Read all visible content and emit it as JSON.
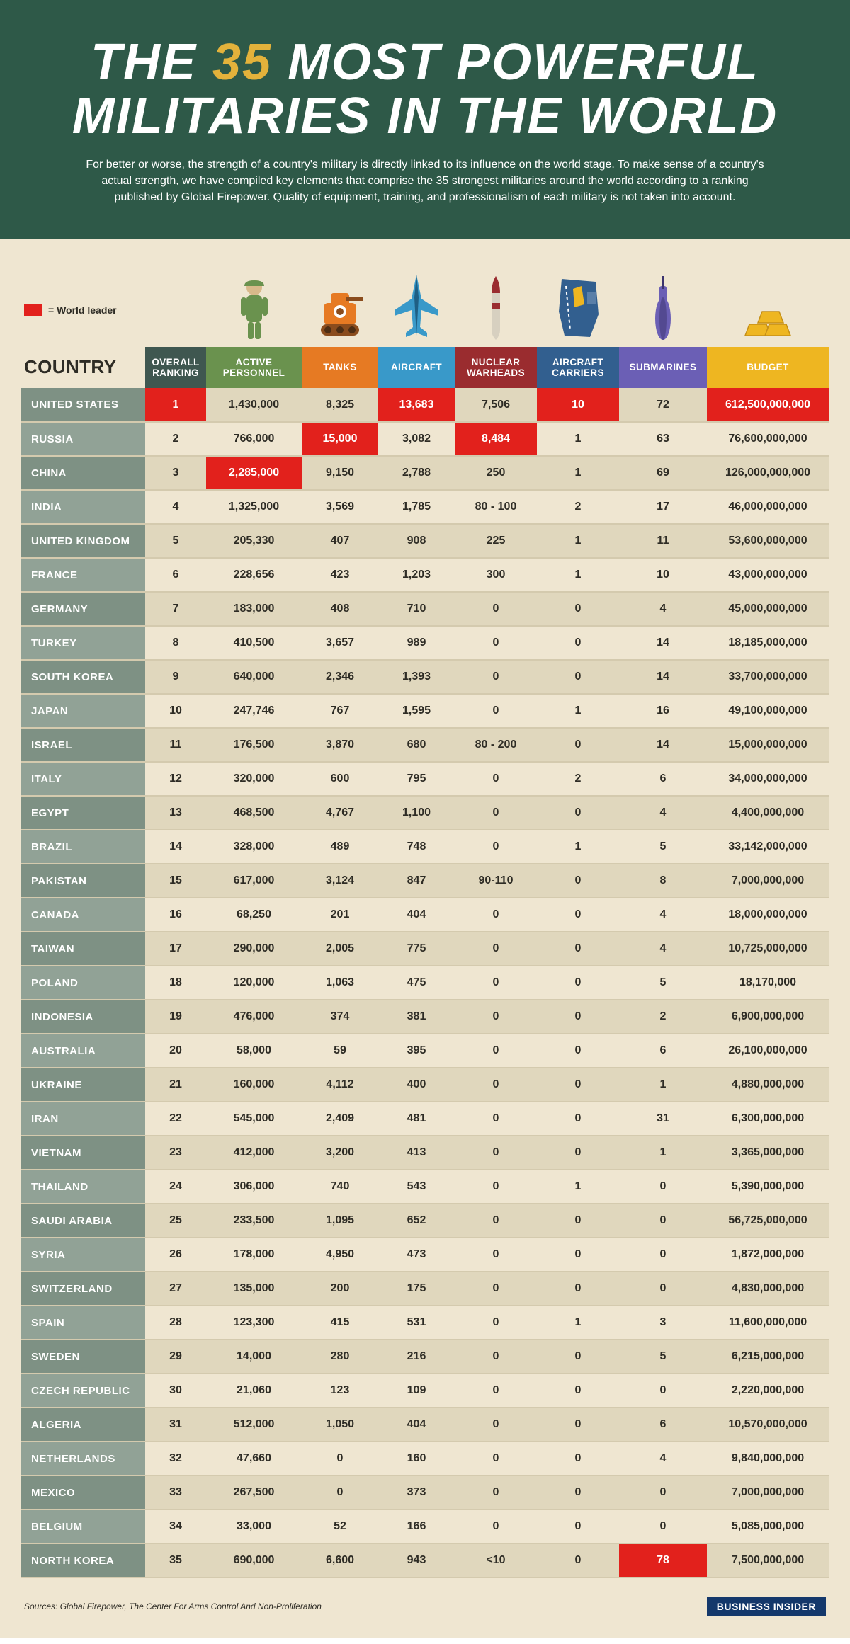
{
  "type": "table-infographic",
  "background_color": "#efe6d1",
  "header": {
    "background_color": "#2e5948",
    "title_line1_pre": "THE ",
    "title_accent": "35",
    "title_line1_post": " MOST POWERFUL",
    "title_line2": "MILITARIES IN THE WORLD",
    "title_color": "#ffffff",
    "accent_color": "#e3b23b",
    "title_fontsize": 72,
    "subtitle": "For better or worse, the strength of a country's military is directly linked to its influence on the world stage. To make sense of a country's actual strength, we have compiled key elements that comprise the 35 strongest militaries around the world according to a ranking published by Global Firepower. Quality of equipment, training, and professionalism of each military is not taken into account.",
    "subtitle_fontsize": 16
  },
  "legend": {
    "swatch_color": "#e2211c",
    "label": "= World leader"
  },
  "columns": [
    {
      "key": "country",
      "label": "COUNTRY",
      "header_bg": "transparent",
      "icon": null
    },
    {
      "key": "rank",
      "label": "OVERALL RANKING",
      "header_bg": "#3f5750",
      "icon": null
    },
    {
      "key": "personnel",
      "label": "ACTIVE PERSONNEL",
      "header_bg": "#6a924e",
      "icon": "soldier"
    },
    {
      "key": "tanks",
      "label": "TANKS",
      "header_bg": "#e67a23",
      "icon": "tank"
    },
    {
      "key": "aircraft",
      "label": "AIRCRAFT",
      "header_bg": "#3999c9",
      "icon": "jet"
    },
    {
      "key": "warheads",
      "label": "NUCLEAR WARHEADS",
      "header_bg": "#9a2c2f",
      "icon": "missile"
    },
    {
      "key": "carriers",
      "label": "AIRCRAFT CARRIERS",
      "header_bg": "#325f8f",
      "icon": "carrier"
    },
    {
      "key": "subs",
      "label": "SUBMARINES",
      "header_bg": "#6b5fb5",
      "icon": "submarine"
    },
    {
      "key": "budget",
      "label": "BUDGET",
      "header_bg": "#eeb621",
      "icon": "gold"
    }
  ],
  "row_colors": {
    "country_odd": "#7e9184",
    "country_even": "#91a296",
    "cell_odd": "#e0d7bd",
    "cell_even": "#efe6d1",
    "leader": "#e2211c",
    "border": "#d4caae",
    "text": "#2e2c25"
  },
  "rows": [
    {
      "country": "UNITED STATES",
      "rank": "1",
      "personnel": "1,430,000",
      "tanks": "8,325",
      "aircraft": "13,683",
      "warheads": "7,506",
      "carriers": "10",
      "subs": "72",
      "budget": "612,500,000,000",
      "leaders": [
        "rank",
        "aircraft",
        "carriers",
        "budget"
      ]
    },
    {
      "country": "RUSSIA",
      "rank": "2",
      "personnel": "766,000",
      "tanks": "15,000",
      "aircraft": "3,082",
      "warheads": "8,484",
      "carriers": "1",
      "subs": "63",
      "budget": "76,600,000,000",
      "leaders": [
        "tanks",
        "warheads"
      ]
    },
    {
      "country": "CHINA",
      "rank": "3",
      "personnel": "2,285,000",
      "tanks": "9,150",
      "aircraft": "2,788",
      "warheads": "250",
      "carriers": "1",
      "subs": "69",
      "budget": "126,000,000,000",
      "leaders": [
        "personnel"
      ]
    },
    {
      "country": "INDIA",
      "rank": "4",
      "personnel": "1,325,000",
      "tanks": "3,569",
      "aircraft": "1,785",
      "warheads": "80 - 100",
      "carriers": "2",
      "subs": "17",
      "budget": "46,000,000,000",
      "leaders": []
    },
    {
      "country": "UNITED KINGDOM",
      "rank": "5",
      "personnel": "205,330",
      "tanks": "407",
      "aircraft": "908",
      "warheads": "225",
      "carriers": "1",
      "subs": "11",
      "budget": "53,600,000,000",
      "leaders": []
    },
    {
      "country": "FRANCE",
      "rank": "6",
      "personnel": "228,656",
      "tanks": "423",
      "aircraft": "1,203",
      "warheads": "300",
      "carriers": "1",
      "subs": "10",
      "budget": "43,000,000,000",
      "leaders": []
    },
    {
      "country": "GERMANY",
      "rank": "7",
      "personnel": "183,000",
      "tanks": "408",
      "aircraft": "710",
      "warheads": "0",
      "carriers": "0",
      "subs": "4",
      "budget": "45,000,000,000",
      "leaders": []
    },
    {
      "country": "TURKEY",
      "rank": "8",
      "personnel": "410,500",
      "tanks": "3,657",
      "aircraft": "989",
      "warheads": "0",
      "carriers": "0",
      "subs": "14",
      "budget": "18,185,000,000",
      "leaders": []
    },
    {
      "country": "SOUTH KOREA",
      "rank": "9",
      "personnel": "640,000",
      "tanks": "2,346",
      "aircraft": "1,393",
      "warheads": "0",
      "carriers": "0",
      "subs": "14",
      "budget": "33,700,000,000",
      "leaders": []
    },
    {
      "country": "JAPAN",
      "rank": "10",
      "personnel": "247,746",
      "tanks": "767",
      "aircraft": "1,595",
      "warheads": "0",
      "carriers": "1",
      "subs": "16",
      "budget": "49,100,000,000",
      "leaders": []
    },
    {
      "country": "ISRAEL",
      "rank": "11",
      "personnel": "176,500",
      "tanks": "3,870",
      "aircraft": "680",
      "warheads": "80 - 200",
      "carriers": "0",
      "subs": "14",
      "budget": "15,000,000,000",
      "leaders": []
    },
    {
      "country": "ITALY",
      "rank": "12",
      "personnel": "320,000",
      "tanks": "600",
      "aircraft": "795",
      "warheads": "0",
      "carriers": "2",
      "subs": "6",
      "budget": "34,000,000,000",
      "leaders": []
    },
    {
      "country": "EGYPT",
      "rank": "13",
      "personnel": "468,500",
      "tanks": "4,767",
      "aircraft": "1,100",
      "warheads": "0",
      "carriers": "0",
      "subs": "4",
      "budget": "4,400,000,000",
      "leaders": []
    },
    {
      "country": "BRAZIL",
      "rank": "14",
      "personnel": "328,000",
      "tanks": "489",
      "aircraft": "748",
      "warheads": "0",
      "carriers": "1",
      "subs": "5",
      "budget": "33,142,000,000",
      "leaders": []
    },
    {
      "country": "PAKISTAN",
      "rank": "15",
      "personnel": "617,000",
      "tanks": "3,124",
      "aircraft": "847",
      "warheads": "90-110",
      "carriers": "0",
      "subs": "8",
      "budget": "7,000,000,000",
      "leaders": []
    },
    {
      "country": "CANADA",
      "rank": "16",
      "personnel": "68,250",
      "tanks": "201",
      "aircraft": "404",
      "warheads": "0",
      "carriers": "0",
      "subs": "4",
      "budget": "18,000,000,000",
      "leaders": []
    },
    {
      "country": "TAIWAN",
      "rank": "17",
      "personnel": "290,000",
      "tanks": "2,005",
      "aircraft": "775",
      "warheads": "0",
      "carriers": "0",
      "subs": "4",
      "budget": "10,725,000,000",
      "leaders": []
    },
    {
      "country": "POLAND",
      "rank": "18",
      "personnel": "120,000",
      "tanks": "1,063",
      "aircraft": "475",
      "warheads": "0",
      "carriers": "0",
      "subs": "5",
      "budget": "18,170,000",
      "leaders": []
    },
    {
      "country": "INDONESIA",
      "rank": "19",
      "personnel": "476,000",
      "tanks": "374",
      "aircraft": "381",
      "warheads": "0",
      "carriers": "0",
      "subs": "2",
      "budget": "6,900,000,000",
      "leaders": []
    },
    {
      "country": "AUSTRALIA",
      "rank": "20",
      "personnel": "58,000",
      "tanks": "59",
      "aircraft": "395",
      "warheads": "0",
      "carriers": "0",
      "subs": "6",
      "budget": "26,100,000,000",
      "leaders": []
    },
    {
      "country": "UKRAINE",
      "rank": "21",
      "personnel": "160,000",
      "tanks": "4,112",
      "aircraft": "400",
      "warheads": "0",
      "carriers": "0",
      "subs": "1",
      "budget": "4,880,000,000",
      "leaders": []
    },
    {
      "country": "IRAN",
      "rank": "22",
      "personnel": "545,000",
      "tanks": "2,409",
      "aircraft": "481",
      "warheads": "0",
      "carriers": "0",
      "subs": "31",
      "budget": "6,300,000,000",
      "leaders": []
    },
    {
      "country": "VIETNAM",
      "rank": "23",
      "personnel": "412,000",
      "tanks": "3,200",
      "aircraft": "413",
      "warheads": "0",
      "carriers": "0",
      "subs": "1",
      "budget": "3,365,000,000",
      "leaders": []
    },
    {
      "country": "THAILAND",
      "rank": "24",
      "personnel": "306,000",
      "tanks": "740",
      "aircraft": "543",
      "warheads": "0",
      "carriers": "1",
      "subs": "0",
      "budget": "5,390,000,000",
      "leaders": []
    },
    {
      "country": "SAUDI ARABIA",
      "rank": "25",
      "personnel": "233,500",
      "tanks": "1,095",
      "aircraft": "652",
      "warheads": "0",
      "carriers": "0",
      "subs": "0",
      "budget": "56,725,000,000",
      "leaders": []
    },
    {
      "country": "SYRIA",
      "rank": "26",
      "personnel": "178,000",
      "tanks": "4,950",
      "aircraft": "473",
      "warheads": "0",
      "carriers": "0",
      "subs": "0",
      "budget": "1,872,000,000",
      "leaders": []
    },
    {
      "country": "SWITZERLAND",
      "rank": "27",
      "personnel": "135,000",
      "tanks": "200",
      "aircraft": "175",
      "warheads": "0",
      "carriers": "0",
      "subs": "0",
      "budget": "4,830,000,000",
      "leaders": []
    },
    {
      "country": "SPAIN",
      "rank": "28",
      "personnel": "123,300",
      "tanks": "415",
      "aircraft": "531",
      "warheads": "0",
      "carriers": "1",
      "subs": "3",
      "budget": "11,600,000,000",
      "leaders": []
    },
    {
      "country": "SWEDEN",
      "rank": "29",
      "personnel": "14,000",
      "tanks": "280",
      "aircraft": "216",
      "warheads": "0",
      "carriers": "0",
      "subs": "5",
      "budget": "6,215,000,000",
      "leaders": []
    },
    {
      "country": "CZECH REPUBLIC",
      "rank": "30",
      "personnel": "21,060",
      "tanks": "123",
      "aircraft": "109",
      "warheads": "0",
      "carriers": "0",
      "subs": "0",
      "budget": "2,220,000,000",
      "leaders": []
    },
    {
      "country": "ALGERIA",
      "rank": "31",
      "personnel": "512,000",
      "tanks": "1,050",
      "aircraft": "404",
      "warheads": "0",
      "carriers": "0",
      "subs": "6",
      "budget": "10,570,000,000",
      "leaders": []
    },
    {
      "country": "NETHERLANDS",
      "rank": "32",
      "personnel": "47,660",
      "tanks": "0",
      "aircraft": "160",
      "warheads": "0",
      "carriers": "0",
      "subs": "4",
      "budget": "9,840,000,000",
      "leaders": []
    },
    {
      "country": "MEXICO",
      "rank": "33",
      "personnel": "267,500",
      "tanks": "0",
      "aircraft": "373",
      "warheads": "0",
      "carriers": "0",
      "subs": "0",
      "budget": "7,000,000,000",
      "leaders": []
    },
    {
      "country": "BELGIUM",
      "rank": "34",
      "personnel": "33,000",
      "tanks": "52",
      "aircraft": "166",
      "warheads": "0",
      "carriers": "0",
      "subs": "0",
      "budget": "5,085,000,000",
      "leaders": []
    },
    {
      "country": "NORTH KOREA",
      "rank": "35",
      "personnel": "690,000",
      "tanks": "6,600",
      "aircraft": "943",
      "warheads": "<10",
      "carriers": "0",
      "subs": "78",
      "budget": "7,500,000,000",
      "leaders": [
        "subs"
      ]
    }
  ],
  "footer": {
    "sources": "Sources: Global Firepower,  The Center For Arms Control And Non-Proliferation",
    "brand": "BUSINESS INSIDER",
    "brand_bg": "#14386b"
  },
  "icons": {
    "soldier": {
      "primary": "#6a924e",
      "secondary": "#d8b98a"
    },
    "tank": {
      "primary": "#e67a23",
      "secondary": "#8a4c1d"
    },
    "jet": {
      "primary": "#3999c9",
      "secondary": "#1f5f84"
    },
    "missile": {
      "primary": "#9a2c2f",
      "secondary": "#d7d0c0"
    },
    "carrier": {
      "primary": "#325f8f",
      "secondary": "#eeb621"
    },
    "submarine": {
      "primary": "#6b5fb5",
      "secondary": "#3b336e"
    },
    "gold": {
      "primary": "#eeb621",
      "secondary": "#c58f17"
    }
  }
}
